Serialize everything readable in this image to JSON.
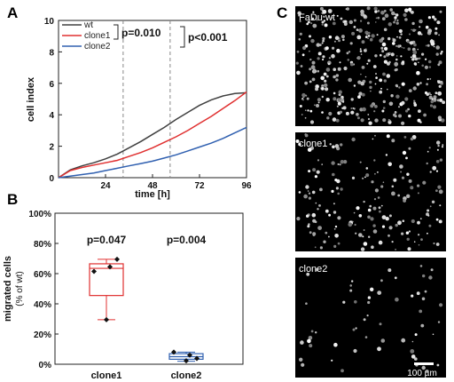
{
  "panels": {
    "a": "A",
    "b": "B",
    "c": "C"
  },
  "chart_data": [
    {
      "type": "line",
      "panel": "A",
      "xlabel": "time [h]",
      "ylabel": "cell index",
      "xlim": [
        0,
        96
      ],
      "ylim": [
        0,
        10
      ],
      "xticks": [
        24,
        48,
        72,
        96
      ],
      "yticks": [
        0,
        2,
        4,
        6,
        8,
        10
      ],
      "vlines": [
        33,
        57
      ],
      "legend_placement": "top-left",
      "series": [
        {
          "name": "wt",
          "color": "#404040",
          "x": [
            0,
            6,
            12,
            18,
            24,
            30,
            36,
            42,
            48,
            54,
            60,
            66,
            72,
            78,
            84,
            90,
            96
          ],
          "values": [
            0.0,
            0.5,
            0.75,
            0.95,
            1.2,
            1.5,
            1.9,
            2.3,
            2.75,
            3.2,
            3.7,
            4.15,
            4.6,
            4.95,
            5.2,
            5.35,
            5.4
          ]
        },
        {
          "name": "clone1",
          "color": "#e03030",
          "x": [
            0,
            6,
            12,
            18,
            24,
            30,
            36,
            42,
            48,
            54,
            60,
            66,
            72,
            78,
            84,
            90,
            96
          ],
          "values": [
            0.0,
            0.45,
            0.65,
            0.8,
            0.95,
            1.1,
            1.35,
            1.6,
            1.9,
            2.25,
            2.6,
            3.0,
            3.45,
            3.9,
            4.4,
            4.9,
            5.45
          ]
        },
        {
          "name": "clone2",
          "color": "#3060b0",
          "x": [
            0,
            6,
            12,
            18,
            24,
            30,
            36,
            42,
            48,
            54,
            60,
            66,
            72,
            78,
            84,
            90,
            96
          ],
          "values": [
            0.0,
            0.1,
            0.2,
            0.3,
            0.45,
            0.6,
            0.75,
            0.9,
            1.05,
            1.25,
            1.45,
            1.7,
            1.95,
            2.2,
            2.5,
            2.85,
            3.2
          ]
        }
      ],
      "annotations": [
        {
          "text": "p=0.010",
          "between": [
            "wt",
            "clone1"
          ]
        },
        {
          "text": "p<0.001",
          "between": [
            "wt",
            "clone2"
          ]
        }
      ]
    },
    {
      "type": "box",
      "panel": "B",
      "ylabel": "migrated cells",
      "ylabel2": "(% of wt)",
      "categories": [
        "clone1",
        "clone2"
      ],
      "ylim": [
        0,
        100
      ],
      "yticks": [
        "0%",
        "20%",
        "40%",
        "60%",
        "80%",
        "100%"
      ],
      "ytick_values": [
        0,
        20,
        40,
        60,
        80,
        100
      ],
      "boxes": [
        {
          "category": "clone1",
          "color": "#e03030",
          "whisker_low": 29.5,
          "q1": 45.5,
          "median": 63.5,
          "q3": 66.5,
          "whisker_high": 69.5,
          "points": [
            61.5,
            64.5,
            69.5,
            29.5
          ],
          "pvalue": "p=0.047"
        },
        {
          "category": "clone2",
          "color": "#3060b0",
          "whisker_low": 2.0,
          "q1": 3.3,
          "median": 5.0,
          "q3": 7.0,
          "whisker_high": 8.0,
          "points": [
            8.0,
            6.0,
            3.8,
            2.3
          ],
          "pvalue": "p=0.004"
        }
      ]
    }
  ],
  "micrographs": [
    {
      "label": "FaDu wt",
      "density": 420
    },
    {
      "label": "clone1",
      "density": 190
    },
    {
      "label": "clone2",
      "density": 60
    }
  ],
  "scalebar": {
    "label": "100 µm"
  }
}
